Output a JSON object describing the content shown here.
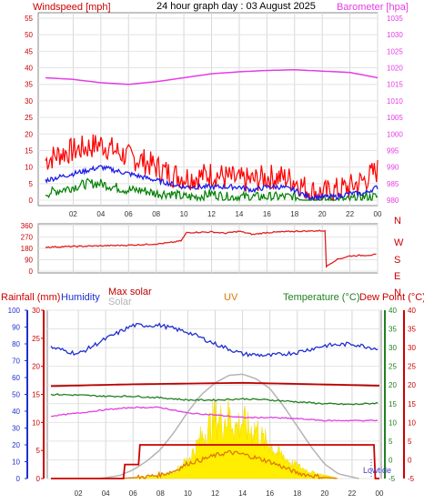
{
  "header": {
    "windspeed_label": "Windspeed [mph]",
    "title": "24 hour graph day : 03 August 2025",
    "barometer_label": "Barometer [hpa]"
  },
  "colors": {
    "wind_max": "#ff0000",
    "wind_avg": "#1e1ee6",
    "wind_min": "#008000",
    "barometer": "#e63ce6",
    "direction": "#e02020",
    "humidity": "#2030d0",
    "max_solar": "#c00000",
    "solar": "#b4b4b4",
    "uv": "#e07800",
    "temperature": "#208020",
    "dewpoint": "#e040e0",
    "solar_fill": "#ffee00",
    "rain": "#cc0000"
  },
  "chart_data": [
    {
      "type": "line",
      "name": "wind-barometer",
      "xlabel": "",
      "x_ticks": [
        "02",
        "04",
        "06",
        "08",
        "10",
        "12",
        "14",
        "16",
        "18",
        "20",
        "22",
        "00"
      ],
      "y_left": {
        "label": "Windspeed [mph]",
        "ticks": [
          "0",
          "5",
          "10",
          "15",
          "20",
          "25",
          "30",
          "35",
          "40",
          "45",
          "50",
          "55"
        ],
        "range": [
          0,
          55
        ]
      },
      "y_right": {
        "label": "Barometer [hpa]",
        "ticks": [
          "980",
          "985",
          "990",
          "995",
          "1000",
          "1005",
          "1010",
          "1015",
          "1020",
          "1025",
          "1030",
          "1035"
        ],
        "range": [
          980,
          1035
        ]
      },
      "series": [
        {
          "role": "wind_max",
          "hours": [
            0,
            1,
            2,
            3,
            4,
            5,
            6,
            7,
            8,
            9,
            10,
            11,
            12,
            13,
            14,
            15,
            16,
            17,
            18,
            19,
            20,
            21,
            22,
            23,
            24
          ],
          "values": [
            12,
            14,
            15,
            16,
            17,
            15,
            13,
            12,
            10,
            8,
            7,
            7,
            8,
            7,
            6,
            6,
            7,
            7,
            6,
            3,
            2,
            3,
            4,
            6,
            9
          ]
        },
        {
          "role": "wind_avg",
          "hours": [
            0,
            1,
            2,
            3,
            4,
            5,
            6,
            7,
            8,
            9,
            10,
            11,
            12,
            13,
            14,
            15,
            16,
            17,
            18,
            19,
            20,
            21,
            22,
            23,
            24
          ],
          "values": [
            6,
            7,
            8,
            9,
            10,
            9,
            8,
            7,
            6,
            5,
            4,
            4,
            4,
            4,
            4,
            3,
            4,
            4,
            3,
            1,
            1,
            1,
            2,
            2,
            4
          ]
        },
        {
          "role": "wind_min",
          "hours": [
            0,
            1,
            2,
            3,
            4,
            5,
            6,
            7,
            8,
            9,
            10,
            11,
            12,
            13,
            14,
            15,
            16,
            17,
            18,
            19,
            20,
            21,
            22,
            23,
            24
          ],
          "values": [
            2,
            3,
            4,
            5,
            5,
            4,
            3,
            3,
            2,
            2,
            1,
            1,
            2,
            1,
            1,
            1,
            1,
            1,
            1,
            0,
            0,
            0,
            0,
            1,
            1
          ]
        },
        {
          "role": "barometer",
          "hours": [
            0,
            2,
            4,
            6,
            8,
            10,
            12,
            14,
            16,
            18,
            20,
            22,
            24
          ],
          "values": [
            1017,
            1016.5,
            1015.5,
            1015,
            1015.8,
            1017,
            1018.2,
            1018.8,
            1019.2,
            1019.4,
            1019,
            1018.6,
            1017
          ]
        }
      ]
    },
    {
      "type": "line",
      "name": "wind-direction",
      "y_ticks": [
        "0",
        "90",
        "180",
        "270",
        "360"
      ],
      "y_range": [
        0,
        360
      ],
      "compass": [
        "N",
        "W",
        "S",
        "E",
        "N"
      ],
      "series": [
        {
          "role": "direction",
          "hours": [
            0,
            2,
            4,
            6,
            8,
            9,
            9.8,
            10.2,
            12,
            13,
            14,
            15,
            16,
            18,
            20.2,
            20.3,
            20.6,
            21,
            22,
            23,
            24
          ],
          "values": [
            190,
            195,
            200,
            205,
            215,
            225,
            240,
            305,
            310,
            300,
            315,
            290,
            305,
            315,
            320,
            35,
            60,
            90,
            120,
            125,
            130
          ]
        }
      ]
    },
    {
      "type": "area",
      "name": "solar-temp",
      "x_ticks": [
        "02",
        "04",
        "06",
        "08",
        "10",
        "12",
        "14",
        "16",
        "18",
        "20",
        "22",
        "00"
      ],
      "legend": {
        "rainfall": "Rainfall (mm)",
        "humidity": "Humidity",
        "max_solar": "Max solar",
        "solar": "Solar",
        "uv": "UV",
        "temperature": "Temperature (°C)",
        "dewpoint": "Dew Point (°C)",
        "lowtide": "Lowtide"
      },
      "axis_humidity": {
        "ticks": [
          "0",
          "10",
          "20",
          "30",
          "40",
          "50",
          "60",
          "70",
          "80",
          "90",
          "100"
        ],
        "range": [
          0,
          100
        ]
      },
      "axis_rain": {
        "ticks": [
          "0",
          "5",
          "10",
          "15",
          "20",
          "25",
          "30"
        ],
        "range": [
          0,
          30
        ]
      },
      "axis_temp_right": {
        "ticks": [
          "-5",
          "0",
          "5",
          "10",
          "15",
          "20",
          "25",
          "30",
          "35",
          "40"
        ],
        "range": [
          -5,
          40
        ]
      },
      "series": [
        {
          "role": "humidity",
          "hours": [
            0,
            2,
            4,
            6,
            8,
            10,
            12,
            14,
            16,
            18,
            20,
            22,
            24
          ],
          "values": [
            78,
            74,
            83,
            91,
            91,
            87,
            80,
            74,
            73,
            75,
            79,
            80,
            77
          ]
        },
        {
          "role": "max_solar",
          "hours": [
            0,
            6,
            10,
            14,
            18,
            24
          ],
          "values": [
            19.7,
            20.2,
            20.4,
            20.6,
            20.3,
            19.8
          ]
        },
        {
          "role": "solar",
          "hours": [
            0,
            8,
            12,
            16,
            24
          ],
          "values": [
            19.9,
            20.3,
            20.5,
            20.4,
            20.0
          ]
        },
        {
          "role": "temperature",
          "hours": [
            0,
            2,
            4,
            6,
            8,
            10,
            12,
            14,
            16,
            18,
            20,
            22,
            24
          ],
          "values": [
            17.5,
            17.3,
            17.0,
            17.0,
            16.6,
            16.0,
            16.0,
            16.3,
            16.0,
            15.5,
            15.0,
            14.8,
            15.2
          ]
        },
        {
          "role": "dewpoint",
          "hours": [
            0,
            2,
            4,
            6,
            8,
            10,
            12,
            14,
            16,
            18,
            20,
            22,
            24
          ],
          "values": [
            11.7,
            12.5,
            13.4,
            14.0,
            14.0,
            12.5,
            12.0,
            11.3,
            11.3,
            11.0,
            10.5,
            10.5,
            10.5
          ]
        },
        {
          "role": "max_solar_curve",
          "hours": [
            3.5,
            5,
            6,
            7,
            8,
            9,
            10,
            11,
            12,
            13,
            14,
            15,
            16,
            17,
            18,
            19,
            20,
            21,
            22.5
          ],
          "values": [
            0,
            0.5,
            1.5,
            3,
            5,
            8,
            11.5,
            14.5,
            16.5,
            17.8,
            18,
            17.2,
            15.5,
            12.5,
            9,
            5.5,
            2.5,
            0.8,
            0
          ]
        },
        {
          "role": "uv",
          "hours": [
            5,
            6,
            7,
            8,
            9,
            10,
            11,
            12,
            13,
            14,
            15,
            16,
            17,
            18,
            19,
            20,
            21
          ],
          "values": [
            0,
            0.2,
            0.5,
            1,
            2,
            4,
            5,
            6.2,
            7,
            6.5,
            5.5,
            4.5,
            3,
            1.5,
            0.8,
            0.3,
            0
          ]
        },
        {
          "role": "rainfall_cumulative",
          "hours": [
            0,
            5.3,
            5.4,
            6.4,
            6.5,
            23.6,
            23.7,
            24
          ],
          "values": [
            0,
            0,
            2.5,
            2.5,
            6,
            6,
            0,
            0
          ]
        },
        {
          "role": "solar_measured",
          "hours": [
            6,
            7,
            8,
            9,
            9.5,
            10,
            10.5,
            11,
            11.5,
            12,
            12.5,
            13,
            13.5,
            14,
            14.5,
            15,
            15.5,
            16,
            16.5,
            17,
            17.5,
            18,
            18.5,
            19,
            19.5,
            20,
            21
          ],
          "values": [
            0,
            0.5,
            1,
            2,
            4,
            6,
            9,
            13,
            16,
            19,
            18,
            20,
            16,
            18,
            15,
            16,
            12,
            11,
            8,
            7,
            5,
            4,
            3,
            2,
            1.5,
            1,
            0
          ]
        }
      ]
    }
  ]
}
